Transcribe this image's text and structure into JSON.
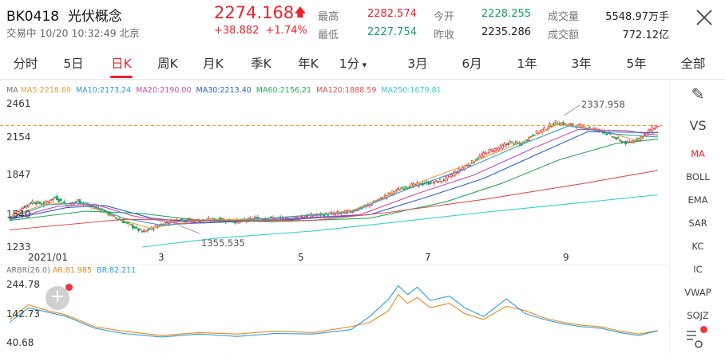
{
  "header": {
    "code": "BK0418",
    "name": "光伏概念",
    "status": "交易中 10/20 10:32:49 北京",
    "price": "2274.168",
    "change": "+38.882",
    "change_pct": "+1.74%"
  },
  "quotes": [
    {
      "label": "最高",
      "value": "2282.574",
      "tone": "red"
    },
    {
      "label": "最低",
      "value": "2227.754",
      "tone": "green"
    },
    {
      "label": "今开",
      "value": "2228.255",
      "tone": "green"
    },
    {
      "label": "昨收",
      "value": "2235.286",
      "tone": "dark"
    },
    {
      "label": "成交量",
      "value": "5548.97万手",
      "tone": "dark"
    },
    {
      "label": "成交额",
      "value": "772.12亿",
      "tone": "dark"
    }
  ],
  "tabs": [
    {
      "label": "分时"
    },
    {
      "label": "5日"
    },
    {
      "label": "日K",
      "active": true
    },
    {
      "label": "周K"
    },
    {
      "label": "月K"
    },
    {
      "label": "季K"
    },
    {
      "label": "年K"
    },
    {
      "label": "1分"
    },
    {
      "label": "3月"
    },
    {
      "label": "6月"
    },
    {
      "label": "1年"
    },
    {
      "label": "3年"
    },
    {
      "label": "5年"
    },
    {
      "label": "全部"
    }
  ],
  "ma_legend": {
    "title": "MA",
    "items": [
      {
        "text": "MA5:2218.69",
        "color": "#e7a03a"
      },
      {
        "text": "MA10:2173.24",
        "color": "#2d9cdb"
      },
      {
        "text": "MA20:2190.00",
        "color": "#d44aa8"
      },
      {
        "text": "MA30:2213.40",
        "color": "#2c62c9"
      },
      {
        "text": "MA60:2156.21",
        "color": "#27a85a"
      },
      {
        "text": "MA120:1888.59",
        "color": "#e04f4f"
      },
      {
        "text": "MA250:1679.81",
        "color": "#2dd3c8"
      }
    ]
  },
  "price_axis": [
    "2461",
    "2154",
    "1847",
    "1540",
    "1233"
  ],
  "date_axis": [
    "2021/01",
    "3",
    "5",
    "7",
    "9"
  ],
  "annotations": {
    "high": "2337.958",
    "low": "1355.535"
  },
  "arbr_legend": {
    "title": "ARBR(26.0)",
    "items": [
      {
        "text": "AR:81.985",
        "color": "#e8891c"
      },
      {
        "text": "BR:82.211",
        "color": "#2d9cdb"
      }
    ]
  },
  "arbr_axis": [
    "244.78",
    "142.73",
    "40.68"
  ],
  "sidebar": [
    {
      "label": "✎",
      "name": "edit-icon"
    },
    {
      "label": "VS",
      "name": "vs-button"
    },
    {
      "label": "MA",
      "name": "indicator-ma",
      "active": true
    },
    {
      "label": "BOLL",
      "name": "indicator-boll"
    },
    {
      "label": "EMA",
      "name": "indicator-ema"
    },
    {
      "label": "SAR",
      "name": "indicator-sar"
    },
    {
      "label": "KC",
      "name": "indicator-kc"
    },
    {
      "label": "IC",
      "name": "indicator-ic"
    },
    {
      "label": "VWAP",
      "name": "indicator-vwap"
    },
    {
      "label": "SOJZ",
      "name": "indicator-sojz"
    }
  ],
  "chart_data": {
    "type": "candlestick",
    "ylim": [
      1233,
      2461
    ],
    "x_months": [
      "2021/01",
      "3",
      "5",
      "7",
      "9"
    ],
    "anchors_close": [
      [
        0,
        1480
      ],
      [
        6,
        1560
      ],
      [
        12,
        1620
      ],
      [
        18,
        1600
      ],
      [
        24,
        1660
      ],
      [
        30,
        1590
      ],
      [
        36,
        1630
      ],
      [
        42,
        1580
      ],
      [
        48,
        1560
      ],
      [
        54,
        1500
      ],
      [
        60,
        1450
      ],
      [
        66,
        1400
      ],
      [
        70,
        1360
      ],
      [
        76,
        1400
      ],
      [
        82,
        1440
      ],
      [
        90,
        1470
      ],
      [
        100,
        1460
      ],
      [
        110,
        1470
      ],
      [
        120,
        1450
      ],
      [
        130,
        1480
      ],
      [
        140,
        1480
      ],
      [
        148,
        1470
      ],
      [
        156,
        1500
      ],
      [
        164,
        1510
      ],
      [
        172,
        1520
      ],
      [
        180,
        1540
      ],
      [
        188,
        1580
      ],
      [
        196,
        1650
      ],
      [
        204,
        1720
      ],
      [
        212,
        1760
      ],
      [
        220,
        1780
      ],
      [
        228,
        1800
      ],
      [
        236,
        1880
      ],
      [
        244,
        1960
      ],
      [
        252,
        2050
      ],
      [
        258,
        2080
      ],
      [
        264,
        2130
      ],
      [
        270,
        2110
      ],
      [
        276,
        2200
      ],
      [
        282,
        2240
      ],
      [
        288,
        2300
      ],
      [
        294,
        2280
      ],
      [
        300,
        2270
      ],
      [
        306,
        2250
      ],
      [
        312,
        2230
      ],
      [
        318,
        2180
      ],
      [
        322,
        2140
      ],
      [
        326,
        2120
      ],
      [
        330,
        2150
      ],
      [
        334,
        2180
      ],
      [
        338,
        2240
      ],
      [
        342,
        2274
      ]
    ],
    "ma_lines": [
      {
        "name": "MA5",
        "color": "#e7a03a",
        "points": [
          [
            0,
            1490
          ],
          [
            20,
            1610
          ],
          [
            40,
            1600
          ],
          [
            60,
            1460
          ],
          [
            74,
            1395
          ],
          [
            100,
            1460
          ],
          [
            140,
            1480
          ],
          [
            180,
            1540
          ],
          [
            210,
            1750
          ],
          [
            240,
            1930
          ],
          [
            270,
            2130
          ],
          [
            290,
            2290
          ],
          [
            310,
            2240
          ],
          [
            330,
            2150
          ],
          [
            342,
            2220
          ]
        ]
      },
      {
        "name": "MA10",
        "color": "#2d9cdb",
        "points": [
          [
            0,
            1480
          ],
          [
            20,
            1595
          ],
          [
            40,
            1610
          ],
          [
            60,
            1480
          ],
          [
            80,
            1420
          ],
          [
            120,
            1460
          ],
          [
            180,
            1530
          ],
          [
            210,
            1730
          ],
          [
            240,
            1900
          ],
          [
            270,
            2110
          ],
          [
            295,
            2270
          ],
          [
            320,
            2200
          ],
          [
            342,
            2175
          ]
        ]
      },
      {
        "name": "MA20",
        "color": "#d44aa8",
        "points": [
          [
            0,
            1470
          ],
          [
            25,
            1580
          ],
          [
            45,
            1600
          ],
          [
            65,
            1500
          ],
          [
            90,
            1430
          ],
          [
            130,
            1460
          ],
          [
            185,
            1510
          ],
          [
            215,
            1690
          ],
          [
            245,
            1850
          ],
          [
            275,
            2070
          ],
          [
            300,
            2240
          ],
          [
            325,
            2230
          ],
          [
            342,
            2190
          ]
        ]
      },
      {
        "name": "MA30",
        "color": "#2c62c9",
        "points": [
          [
            0,
            1470
          ],
          [
            30,
            1570
          ],
          [
            50,
            1590
          ],
          [
            75,
            1480
          ],
          [
            100,
            1440
          ],
          [
            140,
            1460
          ],
          [
            190,
            1510
          ],
          [
            220,
            1660
          ],
          [
            250,
            1820
          ],
          [
            280,
            2040
          ],
          [
            305,
            2220
          ],
          [
            342,
            2213
          ]
        ]
      },
      {
        "name": "MA60",
        "color": "#27a85a",
        "points": [
          [
            0,
            1460
          ],
          [
            40,
            1540
          ],
          [
            70,
            1520
          ],
          [
            100,
            1460
          ],
          [
            140,
            1450
          ],
          [
            190,
            1480
          ],
          [
            230,
            1620
          ],
          [
            260,
            1780
          ],
          [
            290,
            1980
          ],
          [
            320,
            2120
          ],
          [
            342,
            2156
          ]
        ]
      },
      {
        "name": "MA120",
        "color": "#e04f4f",
        "points": [
          [
            0,
            1380
          ],
          [
            60,
            1470
          ],
          [
            110,
            1460
          ],
          [
            160,
            1460
          ],
          [
            200,
            1530
          ],
          [
            250,
            1640
          ],
          [
            300,
            1770
          ],
          [
            342,
            1889
          ]
        ]
      },
      {
        "name": "MA250",
        "color": "#2dd3c8",
        "points": [
          [
            70,
            1233
          ],
          [
            110,
            1310
          ],
          [
            160,
            1370
          ],
          [
            200,
            1440
          ],
          [
            250,
            1530
          ],
          [
            300,
            1610
          ],
          [
            342,
            1680
          ]
        ]
      }
    ],
    "arbr_ylim": [
      40.68,
      244.78
    ],
    "ar": [
      [
        0,
        120
      ],
      [
        10,
        170
      ],
      [
        20,
        150
      ],
      [
        30,
        135
      ],
      [
        45,
        95
      ],
      [
        60,
        80
      ],
      [
        80,
        65
      ],
      [
        100,
        75
      ],
      [
        120,
        70
      ],
      [
        140,
        80
      ],
      [
        160,
        75
      ],
      [
        180,
        95
      ],
      [
        190,
        110
      ],
      [
        200,
        150
      ],
      [
        205,
        205
      ],
      [
        210,
        175
      ],
      [
        215,
        195
      ],
      [
        222,
        160
      ],
      [
        232,
        175
      ],
      [
        240,
        140
      ],
      [
        250,
        120
      ],
      [
        262,
        165
      ],
      [
        272,
        150
      ],
      [
        282,
        125
      ],
      [
        292,
        110
      ],
      [
        302,
        100
      ],
      [
        312,
        95
      ],
      [
        322,
        80
      ],
      [
        332,
        70
      ],
      [
        342,
        82
      ]
    ],
    "br": [
      [
        0,
        110
      ],
      [
        10,
        160
      ],
      [
        20,
        145
      ],
      [
        30,
        130
      ],
      [
        45,
        90
      ],
      [
        60,
        72
      ],
      [
        80,
        60
      ],
      [
        100,
        70
      ],
      [
        120,
        62
      ],
      [
        140,
        72
      ],
      [
        160,
        70
      ],
      [
        180,
        85
      ],
      [
        190,
        130
      ],
      [
        200,
        190
      ],
      [
        205,
        235
      ],
      [
        210,
        205
      ],
      [
        215,
        230
      ],
      [
        222,
        185
      ],
      [
        232,
        200
      ],
      [
        240,
        160
      ],
      [
        250,
        130
      ],
      [
        262,
        190
      ],
      [
        272,
        140
      ],
      [
        282,
        120
      ],
      [
        292,
        105
      ],
      [
        302,
        95
      ],
      [
        312,
        90
      ],
      [
        322,
        75
      ],
      [
        332,
        65
      ],
      [
        342,
        82
      ]
    ],
    "ref_line": 2274.168
  }
}
